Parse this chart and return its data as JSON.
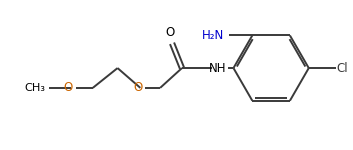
{
  "bg_color": "#ffffff",
  "bond_color": "#3a3a3a",
  "o_color": "#cc6600",
  "n_color": "#0000cd",
  "cl_color": "#3a3a3a",
  "line_width": 1.4,
  "dbo": 0.022,
  "font_size": 8.5,
  "figsize": [
    3.53,
    1.5
  ],
  "dpi": 100,
  "xlim": [
    0,
    3.53
  ],
  "ylim": [
    0,
    1.5
  ]
}
